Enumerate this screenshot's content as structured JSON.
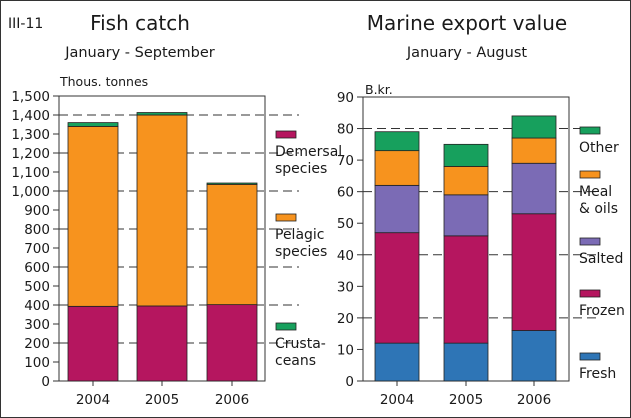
{
  "figure_id": "III-11",
  "chart_data": [
    {
      "type": "bar",
      "stacked": true,
      "title": "Fish catch",
      "subtitle": "January - September",
      "ylabel": "Thous. tonnes",
      "categories": [
        "2004",
        "2005",
        "2006"
      ],
      "ylim": [
        0,
        1500
      ],
      "ytick_step": 100,
      "yticks": [
        "0",
        "100",
        "200",
        "300",
        "400",
        "500",
        "600",
        "700",
        "800",
        "900",
        "1,000",
        "1,100",
        "1,200",
        "1,300",
        "1,400",
        "1,500"
      ],
      "grid": "dashed horizontal lines",
      "legend_position": "right",
      "series": [
        {
          "name": [
            "Demersal",
            "species"
          ],
          "color": "#b5165f",
          "values": [
            393,
            395,
            402
          ]
        },
        {
          "name": [
            "Pelagic",
            "species"
          ],
          "color": "#f7931e",
          "values": [
            947,
            1005,
            633
          ]
        },
        {
          "name": [
            "Crusta-",
            "ceans"
          ],
          "color": "#17a05d",
          "values": [
            20,
            13,
            7
          ]
        }
      ]
    },
    {
      "type": "bar",
      "stacked": true,
      "title": "Marine export value",
      "subtitle": "January - August",
      "ylabel": "B.kr.",
      "categories": [
        "2004",
        "2005",
        "2006"
      ],
      "ylim": [
        0,
        90
      ],
      "ytick_step": 10,
      "yticks": [
        "0",
        "10",
        "20",
        "30",
        "40",
        "50",
        "60",
        "70",
        "80",
        "90"
      ],
      "grid": "dashed horizontal lines",
      "legend_position": "right",
      "series": [
        {
          "name": [
            "Fresh"
          ],
          "color": "#2e75b6",
          "values": [
            12,
            12,
            16
          ]
        },
        {
          "name": [
            "Frozen"
          ],
          "color": "#b5165f",
          "values": [
            35,
            34,
            37
          ]
        },
        {
          "name": [
            "Salted"
          ],
          "color": "#7b6bb5",
          "values": [
            15,
            13,
            16
          ]
        },
        {
          "name": [
            "Meal",
            "& oils"
          ],
          "color": "#f7931e",
          "values": [
            11,
            9,
            8
          ]
        },
        {
          "name": [
            "Other"
          ],
          "color": "#17a05d",
          "values": [
            6,
            7,
            7
          ]
        }
      ]
    }
  ]
}
